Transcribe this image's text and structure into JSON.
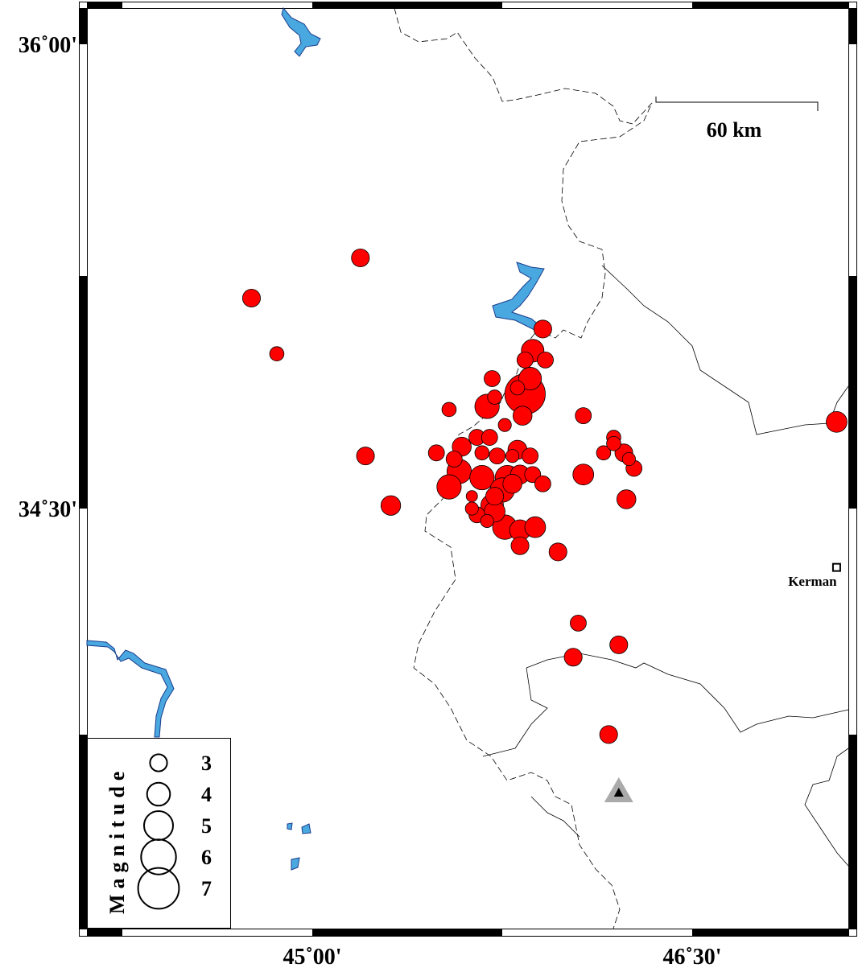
{
  "map": {
    "lon_range": [
      44.6,
      47.1
    ],
    "lat_range": [
      33.0,
      36.1
    ],
    "x_ticks": [
      {
        "lon": 45.0,
        "label": "45˚00'"
      },
      {
        "lon": 46.5,
        "label": "46˚30'"
      }
    ],
    "y_ticks": [
      {
        "lat": 36.0,
        "label": "36˚00'"
      },
      {
        "lat": 34.5,
        "label": "34˚30'"
      }
    ],
    "scale_bar": {
      "label": "60 km"
    },
    "colors": {
      "event": "#ff0000",
      "water": "#4aa8e0",
      "station": "#999999"
    },
    "city": {
      "name": "Kerman",
      "lon": 47.07,
      "lat": 34.31,
      "icon": "square-marker-icon"
    },
    "station": {
      "lon": 46.21,
      "lat": 33.58,
      "icon": "triangle-icon"
    },
    "legend": {
      "title": "Magnitude",
      "entries": [
        {
          "mag": 3,
          "label": "3"
        },
        {
          "mag": 4,
          "label": "4"
        },
        {
          "mag": 5,
          "label": "5"
        },
        {
          "mag": 6,
          "label": "6"
        },
        {
          "mag": 7,
          "label": "7"
        }
      ]
    },
    "events": [
      {
        "lon": 45.19,
        "lat": 35.31,
        "mag": 3.0
      },
      {
        "lon": 44.76,
        "lat": 35.18,
        "mag": 3.0
      },
      {
        "lon": 44.86,
        "lat": 35.0,
        "mag": 2.4
      },
      {
        "lon": 45.21,
        "lat": 34.67,
        "mag": 3.0
      },
      {
        "lon": 45.31,
        "lat": 34.51,
        "mag": 3.3
      },
      {
        "lon": 47.07,
        "lat": 34.78,
        "mag": 3.5
      },
      {
        "lon": 45.91,
        "lat": 35.08,
        "mag": 3.0
      },
      {
        "lon": 45.87,
        "lat": 35.01,
        "mag": 3.8
      },
      {
        "lon": 45.92,
        "lat": 34.98,
        "mag": 2.7
      },
      {
        "lon": 45.84,
        "lat": 34.98,
        "mag": 2.7
      },
      {
        "lon": 45.71,
        "lat": 34.92,
        "mag": 2.7
      },
      {
        "lon": 45.86,
        "lat": 34.92,
        "mag": 3.8
      },
      {
        "lon": 45.84,
        "lat": 34.87,
        "mag": 6.8
      },
      {
        "lon": 45.81,
        "lat": 34.89,
        "mag": 2.4
      },
      {
        "lon": 45.69,
        "lat": 34.83,
        "mag": 4.1
      },
      {
        "lon": 45.72,
        "lat": 34.86,
        "mag": 2.4
      },
      {
        "lon": 45.54,
        "lat": 34.82,
        "mag": 2.4
      },
      {
        "lon": 45.83,
        "lat": 34.8,
        "mag": 3.2
      },
      {
        "lon": 45.76,
        "lat": 34.77,
        "mag": 2.2
      },
      {
        "lon": 46.07,
        "lat": 34.8,
        "mag": 2.7
      },
      {
        "lon": 45.65,
        "lat": 34.73,
        "mag": 2.7
      },
      {
        "lon": 45.7,
        "lat": 34.73,
        "mag": 2.7
      },
      {
        "lon": 45.59,
        "lat": 34.7,
        "mag": 3.2
      },
      {
        "lon": 45.49,
        "lat": 34.68,
        "mag": 2.7
      },
      {
        "lon": 45.56,
        "lat": 34.66,
        "mag": 2.7
      },
      {
        "lon": 45.67,
        "lat": 34.68,
        "mag": 2.4
      },
      {
        "lon": 45.73,
        "lat": 34.67,
        "mag": 2.7
      },
      {
        "lon": 45.81,
        "lat": 34.69,
        "mag": 3.2
      },
      {
        "lon": 45.79,
        "lat": 34.67,
        "mag": 2.2
      },
      {
        "lon": 45.86,
        "lat": 34.67,
        "mag": 2.7
      },
      {
        "lon": 45.58,
        "lat": 34.62,
        "mag": 4.1
      },
      {
        "lon": 45.67,
        "lat": 34.6,
        "mag": 4.1
      },
      {
        "lon": 45.77,
        "lat": 34.6,
        "mag": 4.1
      },
      {
        "lon": 45.82,
        "lat": 34.61,
        "mag": 3.2
      },
      {
        "lon": 45.87,
        "lat": 34.61,
        "mag": 2.7
      },
      {
        "lon": 45.91,
        "lat": 34.58,
        "mag": 2.7
      },
      {
        "lon": 45.54,
        "lat": 34.57,
        "mag": 4.1
      },
      {
        "lon": 45.63,
        "lat": 34.54,
        "mag": 1.9
      },
      {
        "lon": 45.79,
        "lat": 34.58,
        "mag": 3.2
      },
      {
        "lon": 45.75,
        "lat": 34.56,
        "mag": 4.1
      },
      {
        "lon": 45.72,
        "lat": 34.54,
        "mag": 3.0
      },
      {
        "lon": 45.71,
        "lat": 34.51,
        "mag": 3.8
      },
      {
        "lon": 45.63,
        "lat": 34.5,
        "mag": 2.2
      },
      {
        "lon": 45.65,
        "lat": 34.48,
        "mag": 2.7
      },
      {
        "lon": 45.69,
        "lat": 34.46,
        "mag": 2.2
      },
      {
        "lon": 45.72,
        "lat": 34.49,
        "mag": 3.5
      },
      {
        "lon": 45.76,
        "lat": 34.44,
        "mag": 4.1
      },
      {
        "lon": 45.82,
        "lat": 34.43,
        "mag": 3.5
      },
      {
        "lon": 45.88,
        "lat": 34.44,
        "mag": 3.5
      },
      {
        "lon": 45.82,
        "lat": 34.38,
        "mag": 3.0
      },
      {
        "lon": 46.07,
        "lat": 34.61,
        "mag": 3.5
      },
      {
        "lon": 46.19,
        "lat": 34.73,
        "mag": 2.4
      },
      {
        "lon": 46.15,
        "lat": 34.68,
        "mag": 2.4
      },
      {
        "lon": 46.19,
        "lat": 34.71,
        "mag": 2.4
      },
      {
        "lon": 46.23,
        "lat": 34.68,
        "mag": 3.0
      },
      {
        "lon": 46.25,
        "lat": 34.66,
        "mag": 2.2
      },
      {
        "lon": 46.27,
        "lat": 34.63,
        "mag": 2.7
      },
      {
        "lon": 46.24,
        "lat": 34.53,
        "mag": 3.2
      },
      {
        "lon": 45.97,
        "lat": 34.36,
        "mag": 3.0
      },
      {
        "lon": 46.05,
        "lat": 34.13,
        "mag": 2.7
      },
      {
        "lon": 46.21,
        "lat": 34.06,
        "mag": 3.0
      },
      {
        "lon": 46.03,
        "lat": 34.02,
        "mag": 3.0
      },
      {
        "lon": 46.17,
        "lat": 33.77,
        "mag": 3.0
      }
    ]
  }
}
